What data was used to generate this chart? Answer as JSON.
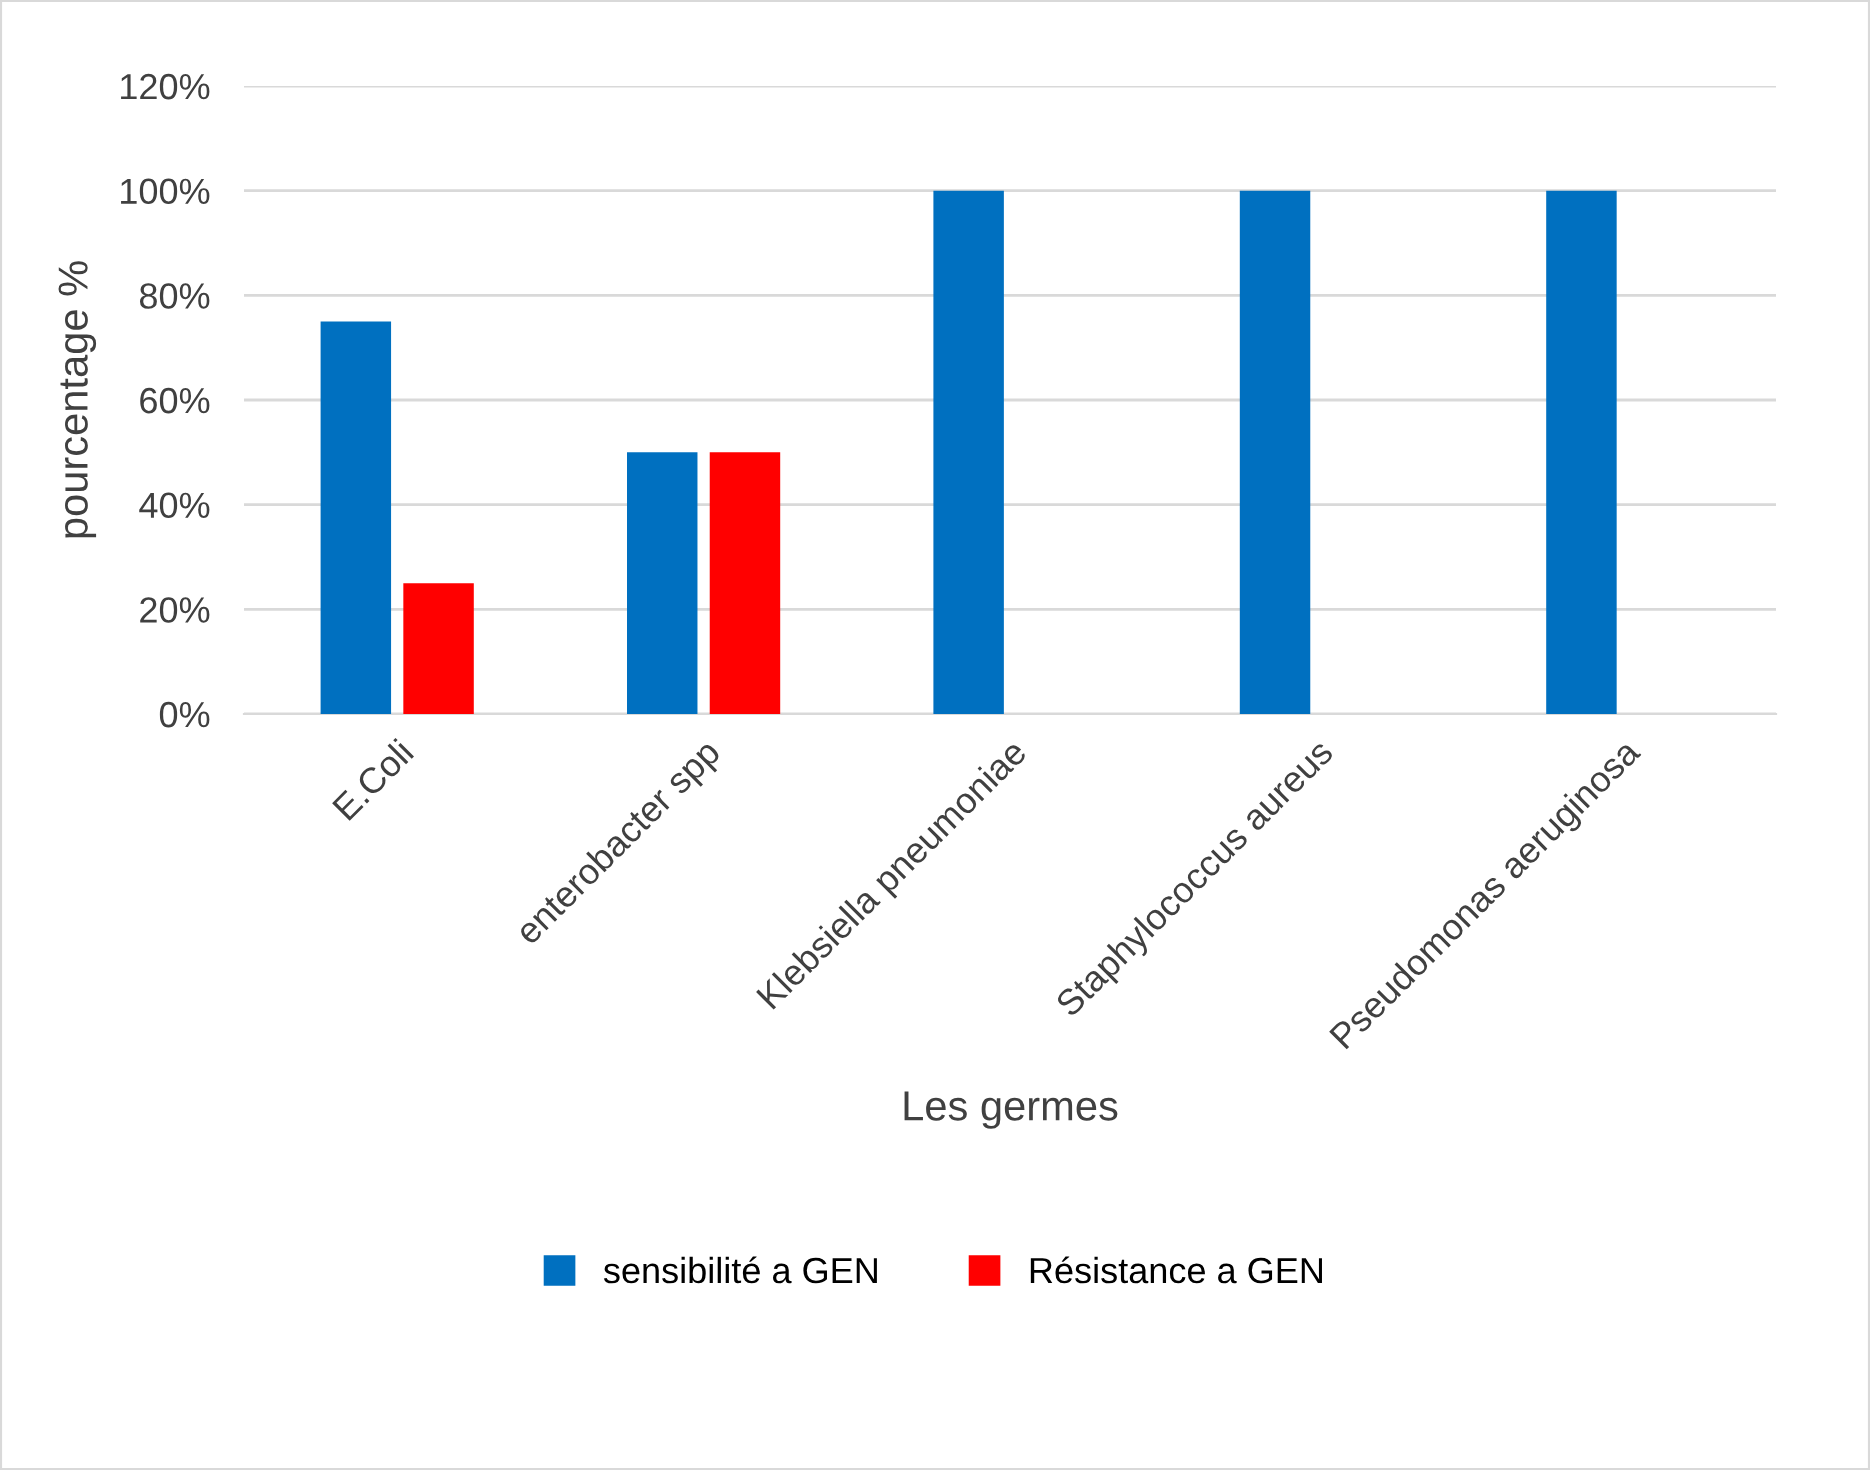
{
  "chart_data": {
    "type": "bar",
    "xlabel": "Les germes",
    "ylabel": "pourcentage %",
    "categories": [
      "E.Coli",
      "enterobacter spp",
      "Klebsiella pneumoniae",
      "Staphylococcus aureus",
      "Pseudomonas aeruginosa"
    ],
    "series": [
      {
        "name": "sensibilité a GEN",
        "color": "#0070c0",
        "values": [
          75,
          50,
          100,
          100,
          100
        ]
      },
      {
        "name": "Résistance a GEN",
        "color": "#ff0000",
        "values": [
          25,
          50,
          0,
          0,
          0
        ]
      }
    ],
    "ylim": [
      0,
      120
    ],
    "yticks": [
      {
        "value": 0,
        "label": "0%"
      },
      {
        "value": 20,
        "label": "20%"
      },
      {
        "value": 40,
        "label": "40%"
      },
      {
        "value": 60,
        "label": "60%"
      },
      {
        "value": 80,
        "label": "80%"
      },
      {
        "value": 100,
        "label": "100%"
      },
      {
        "value": 120,
        "label": "120%"
      }
    ],
    "grid": "y",
    "legend": "bottom"
  }
}
